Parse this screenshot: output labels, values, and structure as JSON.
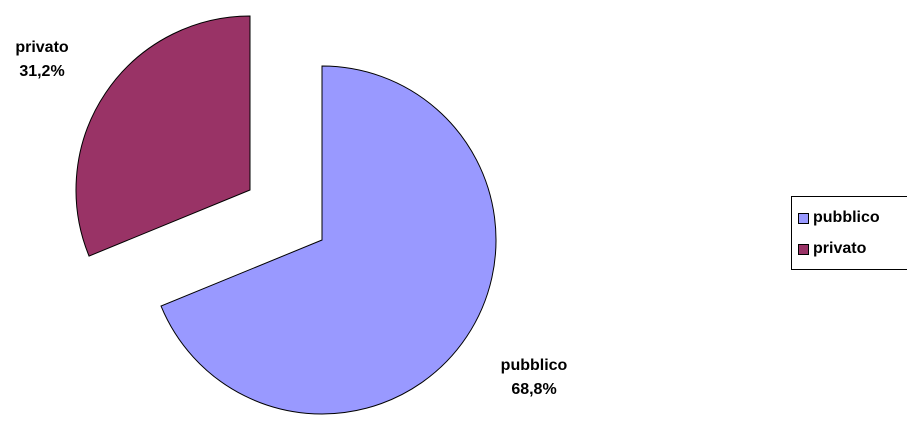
{
  "chart_data": {
    "type": "pie",
    "categories": [
      "pubblico",
      "privato"
    ],
    "values": [
      68.8,
      31.2
    ],
    "value_labels": [
      "68,8%",
      "31,2%"
    ],
    "colors": [
      "#9999FF",
      "#993366"
    ],
    "exploded": true,
    "legend_position": "right",
    "title": ""
  }
}
